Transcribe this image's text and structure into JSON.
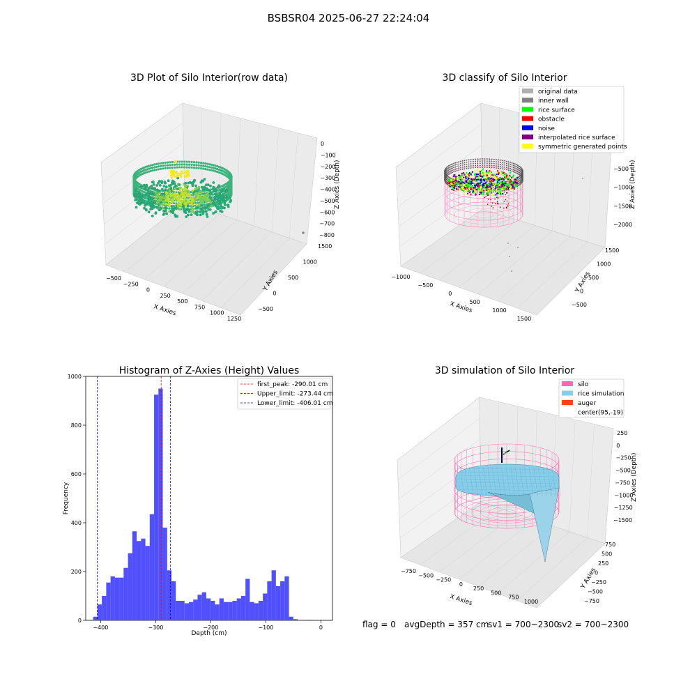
{
  "suptitle": "BSBSR04 2025-06-27 22:24:04",
  "status": {
    "flag": "flag = 0",
    "avg": "avgDepth = 357 cm",
    "sv1": "sv1 = 700~2300",
    "sv2": "sv2 = 700~2300"
  },
  "colors": {
    "hist_bar": "#5050ff",
    "first_peak": "#ff0000",
    "limit": "#0000cc",
    "silo_pink": "#ff69b4",
    "rice_sim": "#87ceeb",
    "auger": "#ff4500",
    "scatter_top": "#f7e825",
    "scatter_low": "#2aa676"
  },
  "chart_data": [
    {
      "type": "scatter",
      "title": "3D Plot of Silo Interior(row data)",
      "xlabel": "X Axies",
      "ylabel": "Y Axies",
      "zlabel": "Z Axies (Depth)",
      "x_ticks": [
        "−500",
        "−250",
        "0",
        "250",
        "500",
        "750",
        "1000",
        "1250"
      ],
      "y_ticks": [
        "−500",
        "0",
        "500",
        "1000",
        "1500"
      ],
      "z_ticks": [
        "0",
        "−100",
        "−200",
        "−300",
        "−400",
        "−500",
        "−600",
        "−700",
        "−800"
      ]
    },
    {
      "type": "scatter",
      "title": "3D classify of Silo Interior",
      "xlabel": "X Axies",
      "ylabel": "Y Axies",
      "zlabel": "Z Axies (Depth)",
      "x_ticks": [
        "−1000",
        "−500",
        "0",
        "500",
        "1000",
        "1500"
      ],
      "y_ticks": [
        "−500",
        "0",
        "500",
        "1000",
        "1500"
      ],
      "z_ticks": [
        "0",
        "−500",
        "−1000",
        "−1500",
        "−2000"
      ],
      "legend": [
        {
          "label": "original data",
          "color": "#b0b0b0"
        },
        {
          "label": "inner wall",
          "color": "#808080"
        },
        {
          "label": "rice surface",
          "color": "#00ff00"
        },
        {
          "label": "obstacle",
          "color": "#ff0000"
        },
        {
          "label": "noise",
          "color": "#0000ff"
        },
        {
          "label": "interpolated rice surface",
          "color": "#800080"
        },
        {
          "label": "symmetric generated points",
          "color": "#ffff00"
        }
      ],
      "legend_position": "top-right"
    },
    {
      "type": "bar",
      "title": "Histogram of Z-Axies (Height) Values",
      "xlabel": "Depth (cm)",
      "ylabel": "Frequency",
      "xlim": [
        -427,
        21
      ],
      "ylim": [
        0,
        1000
      ],
      "x_ticks": [
        -400,
        -300,
        -200,
        -100,
        0
      ],
      "y_ticks": [
        0,
        200,
        400,
        600,
        800,
        1000
      ],
      "bin_start": -413.5,
      "bin_width": 7.9,
      "values": [
        15,
        65,
        100,
        155,
        180,
        175,
        175,
        215,
        275,
        365,
        325,
        335,
        305,
        435,
        925,
        950,
        380,
        205,
        160,
        80,
        80,
        70,
        75,
        85,
        105,
        115,
        90,
        80,
        65,
        90,
        75,
        75,
        80,
        90,
        100,
        170,
        75,
        70,
        80,
        110,
        160,
        205,
        140,
        160,
        180,
        15,
        5,
        0,
        0,
        2
      ],
      "vlines": [
        {
          "x": -290.01,
          "label": "first_peak: -290.01 cm",
          "color": "#ff0000"
        },
        {
          "x": -273.44,
          "label": "Upper_limit: -273.44 cm",
          "color": "#0000cc"
        },
        {
          "x": -406.01,
          "label": "Lower_limit: -406.01 cm",
          "color": "#0000cc"
        }
      ],
      "legend_position": "top-right"
    },
    {
      "type": "area",
      "title": "3D simulation of Silo Interior",
      "xlabel": "X Axies",
      "ylabel": "Y Axies",
      "zlabel": "Z Axies (Depth)",
      "x_ticks": [
        "−750",
        "−500",
        "−250",
        "0",
        "250",
        "500",
        "750",
        "1000"
      ],
      "y_ticks": [
        "−750",
        "−500",
        "−250",
        "0",
        "250",
        "500",
        "750"
      ],
      "z_ticks": [
        "250",
        "0",
        "−250",
        "−500",
        "−750",
        "−1000",
        "−1250",
        "−1500"
      ],
      "legend": [
        {
          "label": "silo",
          "color": "#ff69b4"
        },
        {
          "label": "rice simulation",
          "color": "#87ceeb"
        },
        {
          "label": "auger",
          "color": "#ff4500"
        },
        {
          "label": "center(95,-19)",
          "color": "#ffffff"
        }
      ],
      "legend_position": "top-right"
    }
  ]
}
